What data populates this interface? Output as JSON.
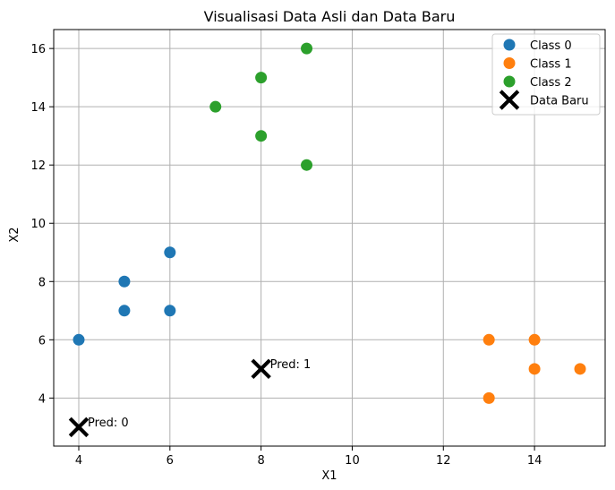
{
  "chart_data": {
    "type": "scatter",
    "title": "Visualisasi Data Asli dan Data Baru",
    "xlabel": "X1",
    "ylabel": "X2",
    "xlim": [
      3.45,
      15.55
    ],
    "ylim": [
      2.35,
      16.65
    ],
    "xticks": [
      4,
      6,
      8,
      10,
      12,
      14
    ],
    "yticks": [
      4,
      6,
      8,
      10,
      12,
      14,
      16
    ],
    "grid": true,
    "legend_position": "top-right",
    "series": [
      {
        "name": "Class 0",
        "color": "#1f77b4",
        "marker": "circle",
        "points": [
          [
            4,
            6
          ],
          [
            5,
            7
          ],
          [
            5,
            8
          ],
          [
            6,
            7
          ],
          [
            6,
            9
          ]
        ]
      },
      {
        "name": "Class 1",
        "color": "#ff7f0e",
        "marker": "circle",
        "points": [
          [
            13,
            6
          ],
          [
            13,
            4
          ],
          [
            14,
            6
          ],
          [
            14,
            5
          ],
          [
            15,
            5
          ]
        ]
      },
      {
        "name": "Class 2",
        "color": "#2ca02c",
        "marker": "circle",
        "points": [
          [
            7,
            14
          ],
          [
            8,
            15
          ],
          [
            8,
            13
          ],
          [
            9,
            16
          ],
          [
            9,
            12
          ]
        ]
      },
      {
        "name": "Data Baru",
        "color": "#000000",
        "marker": "x",
        "points": [
          [
            4,
            3
          ],
          [
            8,
            5
          ]
        ]
      }
    ],
    "annotations": [
      {
        "text": "Pred: 0",
        "x": 4,
        "y": 3
      },
      {
        "text": "Pred: 1",
        "x": 8,
        "y": 5
      }
    ]
  }
}
